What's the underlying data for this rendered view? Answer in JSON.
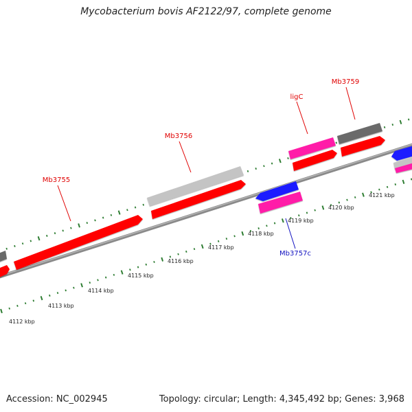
{
  "title": "Mycobacterium bovis AF2122/97, complete genome",
  "footer": {
    "accession": "Accession: NC_002945",
    "summary": "Topology: circular; Length: 4,345,492 bp; Genes: 3,968"
  },
  "colors": {
    "backbone": "#8a8a8a",
    "tick": "#2e7d32",
    "gene_red": "#ff0000",
    "gene_pink": "#ff1fa8",
    "gene_blue": "#1a1aff",
    "gene_lightgray": "#c4c4c4",
    "gene_darkgray": "#6a6a6a",
    "label_red": "#e00000",
    "label_blue": "#1010c0"
  },
  "scale_labels": [
    "4112 kbp",
    "4113 kbp",
    "4114 kbp",
    "4115 kbp",
    "4116 kbp",
    "4117 kbp",
    "4118 kbp",
    "4119 kbp",
    "4120 kbp",
    "4121 kbp"
  ],
  "gene_labels": [
    {
      "id": "mb3755",
      "text": "Mb3755",
      "color": "red"
    },
    {
      "id": "mb3756",
      "text": "Mb3756",
      "color": "red"
    },
    {
      "id": "ligc",
      "text": "ligC",
      "color": "red"
    },
    {
      "id": "mb3759",
      "text": "Mb3759",
      "color": "red"
    },
    {
      "id": "mb3757c",
      "text": "Mb3757c",
      "color": "blue"
    }
  ]
}
